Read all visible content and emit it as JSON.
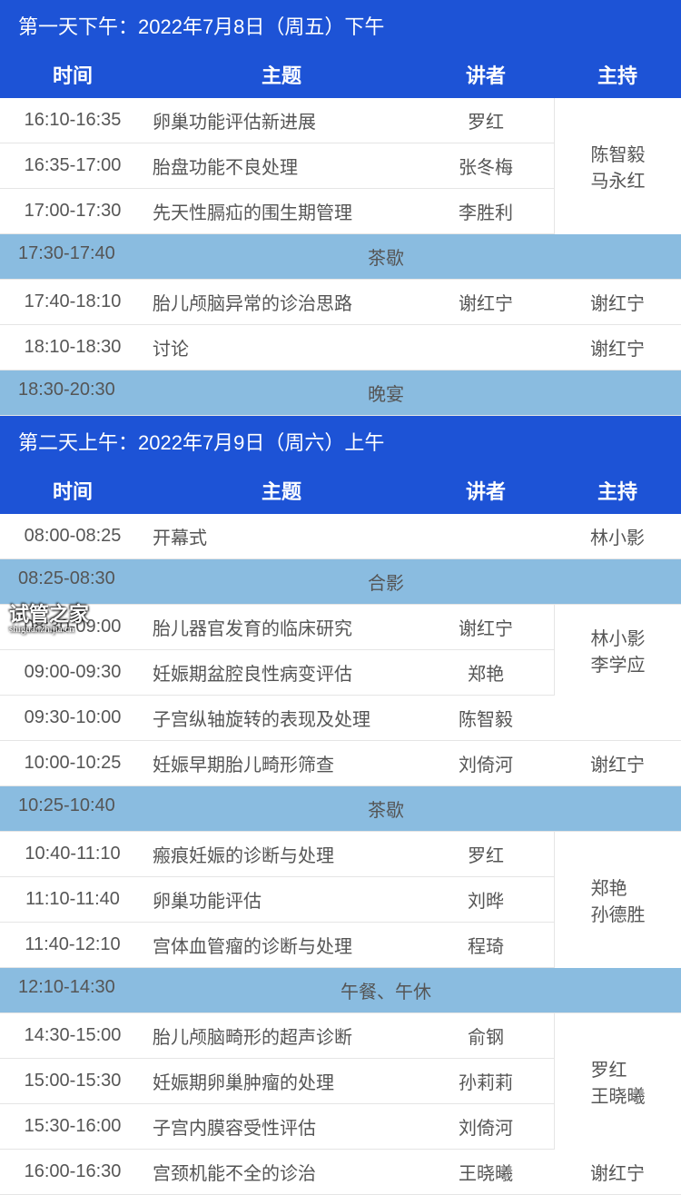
{
  "colors": {
    "primary": "#1d53d6",
    "break": "#8abce0",
    "text": "#555555"
  },
  "columns": {
    "time": "时间",
    "topic": "主题",
    "speaker": "讲者",
    "host": "主持"
  },
  "watermark": {
    "title": "试管之家",
    "sub": "shiguanzhijia.cn"
  },
  "day1": {
    "banner": "第一天下午：2022年7月8日（周五）下午",
    "groups": [
      {
        "host": "陈智毅\n马永红",
        "rows": [
          {
            "time": "16:10-16:35",
            "topic": "卵巢功能评估新进展",
            "speaker": "罗红"
          },
          {
            "time": "16:35-17:00",
            "topic": "胎盘功能不良处理",
            "speaker": "张冬梅"
          },
          {
            "time": "17:00-17:30",
            "topic": "先天性膈疝的围生期管理",
            "speaker": "李胜利"
          }
        ]
      },
      {
        "break": {
          "time": "17:30-17:40",
          "label": "茶歇"
        }
      },
      {
        "host_rows": [
          {
            "time": "17:40-18:10",
            "topic": "胎儿颅脑异常的诊治思路",
            "speaker": "谢红宁",
            "host": "谢红宁"
          },
          {
            "time": "18:10-18:30",
            "topic": "讨论",
            "speaker": "",
            "host": "谢红宁"
          }
        ]
      },
      {
        "break": {
          "time": "18:30-20:30",
          "label": "晚宴"
        }
      }
    ]
  },
  "day2": {
    "banner": "第二天上午：2022年7月9日（周六）上午",
    "groups": [
      {
        "host_rows": [
          {
            "time": "08:00-08:25",
            "topic": "开幕式",
            "speaker": "",
            "host": "林小影"
          }
        ]
      },
      {
        "break": {
          "time": "08:25-08:30",
          "label": "合影"
        }
      },
      {
        "host": "林小影\n李学应",
        "rows": [
          {
            "time": "08:30-09:00",
            "topic": "胎儿器官发育的临床研究",
            "speaker": "谢红宁"
          },
          {
            "time": "09:00-09:30",
            "topic": "妊娠期盆腔良性病变评估",
            "speaker": "郑艳"
          }
        ]
      },
      {
        "host_rows": [
          {
            "time": "09:30-10:00",
            "topic": "子宫纵轴旋转的表现及处理",
            "speaker": "陈智毅",
            "host": ""
          },
          {
            "time": "10:00-10:25",
            "topic": "妊娠早期胎儿畸形筛查",
            "speaker": "刘倚河",
            "host": "谢红宁"
          }
        ]
      },
      {
        "break": {
          "time": "10:25-10:40",
          "label": "茶歇"
        }
      },
      {
        "host": "郑艳\n孙德胜",
        "rows": [
          {
            "time": "10:40-11:10",
            "topic": "瘢痕妊娠的诊断与处理",
            "speaker": "罗红"
          },
          {
            "time": "11:10-11:40",
            "topic": "卵巢功能评估",
            "speaker": "刘晔"
          },
          {
            "time": "11:40-12:10",
            "topic": "宫体血管瘤的诊断与处理",
            "speaker": "程琦"
          }
        ]
      },
      {
        "break": {
          "time": "12:10-14:30",
          "label": "午餐、午休"
        }
      },
      {
        "host": "罗红\n王晓曦",
        "rows": [
          {
            "time": "14:30-15:00",
            "topic": "胎儿颅脑畸形的超声诊断",
            "speaker": "俞钢"
          },
          {
            "time": "15:00-15:30",
            "topic": "妊娠期卵巢肿瘤的处理",
            "speaker": "孙莉莉"
          },
          {
            "time": "15:30-16:00",
            "topic": "子宫内膜容受性评估",
            "speaker": "刘倚河"
          }
        ]
      },
      {
        "host_rows": [
          {
            "time": "16:00-16:30",
            "topic": "宫颈机能不全的诊治",
            "speaker": "王晓曦",
            "host": "谢红宁"
          }
        ]
      }
    ]
  }
}
